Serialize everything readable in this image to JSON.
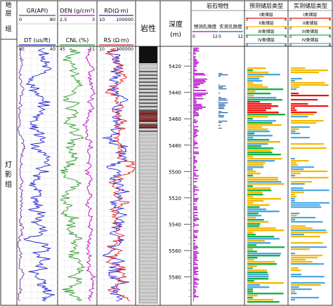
{
  "chart_data": {
    "type": "line",
    "depth_axis": {
      "label": "深度",
      "unit": "(m)",
      "range": [
        5405,
        5600
      ],
      "ticks": [
        5420,
        5440,
        5460,
        5480,
        5500,
        5520,
        5540,
        5560,
        5580
      ]
    },
    "strat_column": {
      "header": [
        "地",
        "层",
        "组"
      ],
      "formation": "灯影组"
    },
    "lithology_header": "岩性",
    "log_tracks": [
      {
        "curves": [
          {
            "name": "GR(API)",
            "min": "0",
            "max": "80",
            "color": "#7030a0"
          },
          {
            "name": "DT (us/ft)",
            "min": "65",
            "max": "40",
            "color": "#1f1fd0"
          }
        ]
      },
      {
        "curves": [
          {
            "name": "DEN (g/cm³)",
            "min": "2.5",
            "max": "3",
            "color": "#c000c0"
          },
          {
            "name": "CNL (%)",
            "min": "45",
            "max": "-15",
            "color": "#2e9b2e"
          }
        ]
      },
      {
        "curves": [
          {
            "name": "RD(Ω·m)",
            "min": "10",
            "max": "100000",
            "color": "#2222dd"
          },
          {
            "name": "RS (Ω·m)",
            "min": "10",
            "max": "100000",
            "color": "#e02020"
          }
        ]
      }
    ],
    "rock_physics": {
      "header": "岩石物性",
      "series": [
        {
          "name": "预测孔隙度",
          "min": "0",
          "max": "12",
          "color": "#b000c8"
        },
        {
          "name": "实测孔隙度",
          "min": "0",
          "max": "12",
          "color": "#1f5fa8"
        }
      ]
    },
    "reservoir_legend": {
      "predicted_header": "预测储层类型",
      "measured_header": "实测储层类型",
      "classes": [
        {
          "label": "I类储层",
          "min": "0",
          "max": "4",
          "color": "#ee1111"
        },
        {
          "label": "II类储层",
          "min": "0",
          "max": "4",
          "color": "#f5b800"
        },
        {
          "label": "III类储层",
          "min": "0",
          "max": "4",
          "color": "#19b04a"
        },
        {
          "label": "IV类储层",
          "min": "0",
          "max": "4",
          "color": "#4aa8e0"
        }
      ]
    }
  }
}
